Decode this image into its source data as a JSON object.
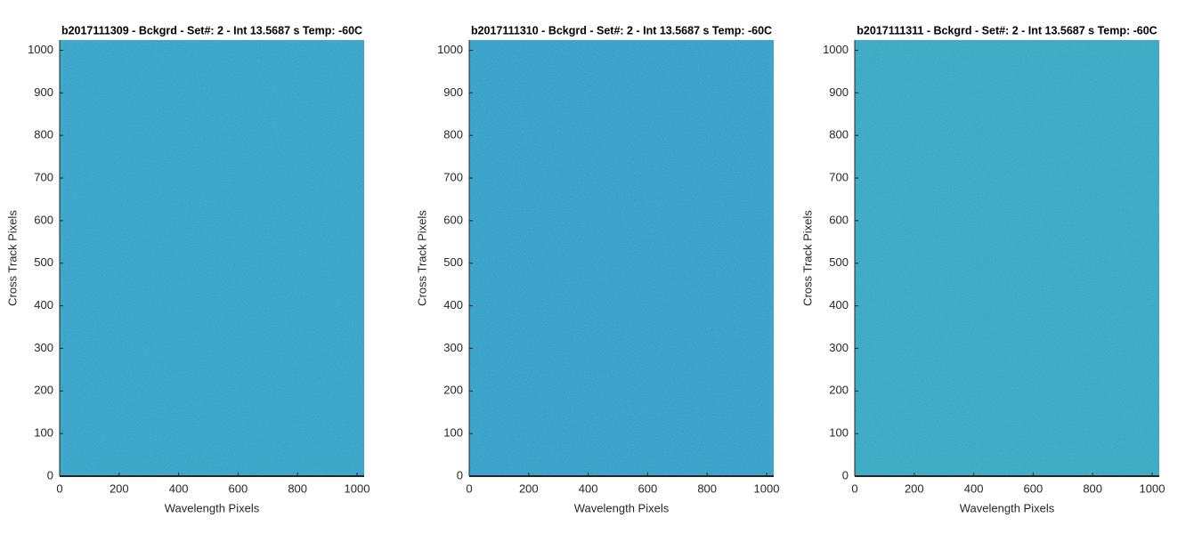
{
  "chart_data": [
    {
      "type": "image",
      "title": "b2017111309 - Bckgrd - Set#: 2 - Int 13.5687 s Temp: -60C",
      "xlabel": "Wavelength Pixels",
      "ylabel": "Cross Track Pixels",
      "color": "#17a0cb",
      "xlim": [
        0,
        1024
      ],
      "ylim": [
        0,
        1024
      ],
      "xticks": [
        0,
        200,
        400,
        600,
        800,
        1000
      ],
      "yticks": [
        0,
        100,
        200,
        300,
        400,
        500,
        600,
        700,
        800,
        900,
        1000
      ]
    },
    {
      "type": "image",
      "title": "b2017111310 - Bckgrd - Set#: 2 - Int 13.5687 s Temp: -60C",
      "xlabel": "Wavelength Pixels",
      "ylabel": "Cross Track Pixels",
      "color": "#139dcc",
      "xlim": [
        0,
        1024
      ],
      "ylim": [
        0,
        1024
      ],
      "xticks": [
        0,
        200,
        400,
        600,
        800,
        1000
      ],
      "yticks": [
        0,
        100,
        200,
        300,
        400,
        500,
        600,
        700,
        800,
        900,
        1000
      ]
    },
    {
      "type": "image",
      "title": "b2017111311 - Bckgrd - Set#: 2 - Int 13.5687 s Temp: -60C",
      "xlabel": "Wavelength Pixels",
      "ylabel": "Cross Track Pixels",
      "color": "#1ca6c6",
      "xlim": [
        0,
        1024
      ],
      "ylim": [
        0,
        1024
      ],
      "xticks": [
        0,
        200,
        400,
        600,
        800,
        1000
      ],
      "yticks": [
        0,
        100,
        200,
        300,
        400,
        500,
        600,
        700,
        800,
        900,
        1000
      ]
    }
  ]
}
